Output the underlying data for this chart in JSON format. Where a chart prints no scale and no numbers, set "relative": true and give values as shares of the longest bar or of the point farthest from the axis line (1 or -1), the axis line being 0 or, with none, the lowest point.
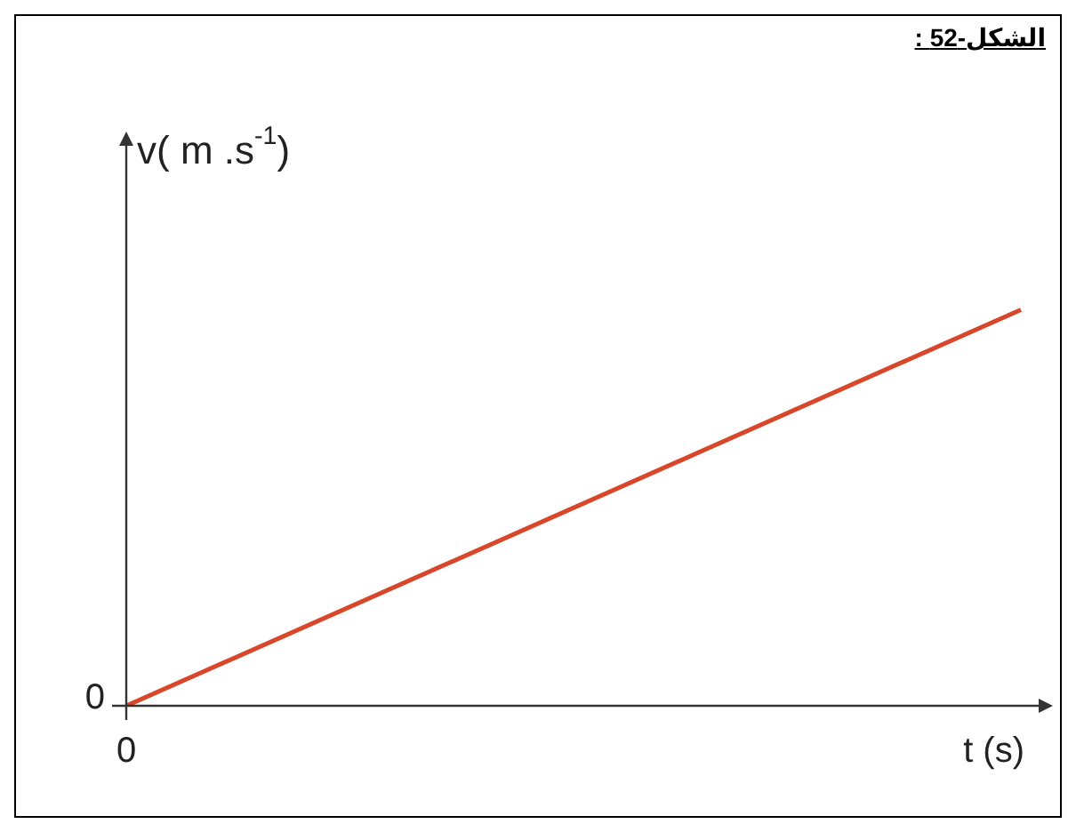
{
  "chart_data": {
    "type": "line",
    "title": "الشكل-52 :",
    "xlabel": "t (s)",
    "ylabel": "v( m .s$^{-1}$)",
    "categories": [
      null,
      null
    ],
    "series": [
      {
        "color": "#d9472b",
        "values": [
          0,
          1
        ]
      }
    ],
    "relative": true,
    "grid": false,
    "legend": false,
    "marker": "none",
    "line_style": "solid",
    "annotations": [
      "0",
      "0"
    ]
  }
}
